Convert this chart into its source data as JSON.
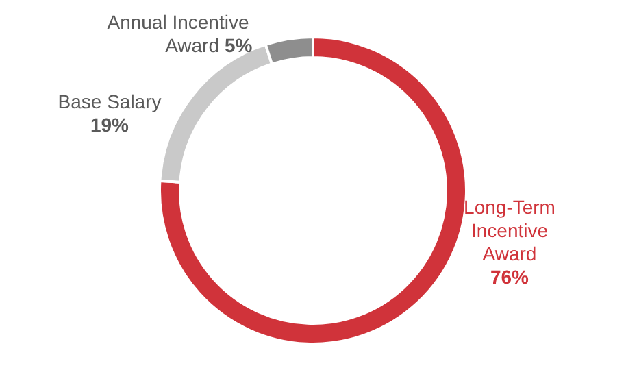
{
  "chart_data": {
    "type": "donut",
    "categories": [
      "Long-Term Incentive Award",
      "Base Salary",
      "Annual Incentive Award"
    ],
    "values": [
      76,
      19,
      5
    ],
    "colors": [
      "#d0333a",
      "#c9c9c9",
      "#8e8e8e"
    ],
    "value_labels": [
      "76%",
      "19%",
      "5%"
    ]
  }
}
